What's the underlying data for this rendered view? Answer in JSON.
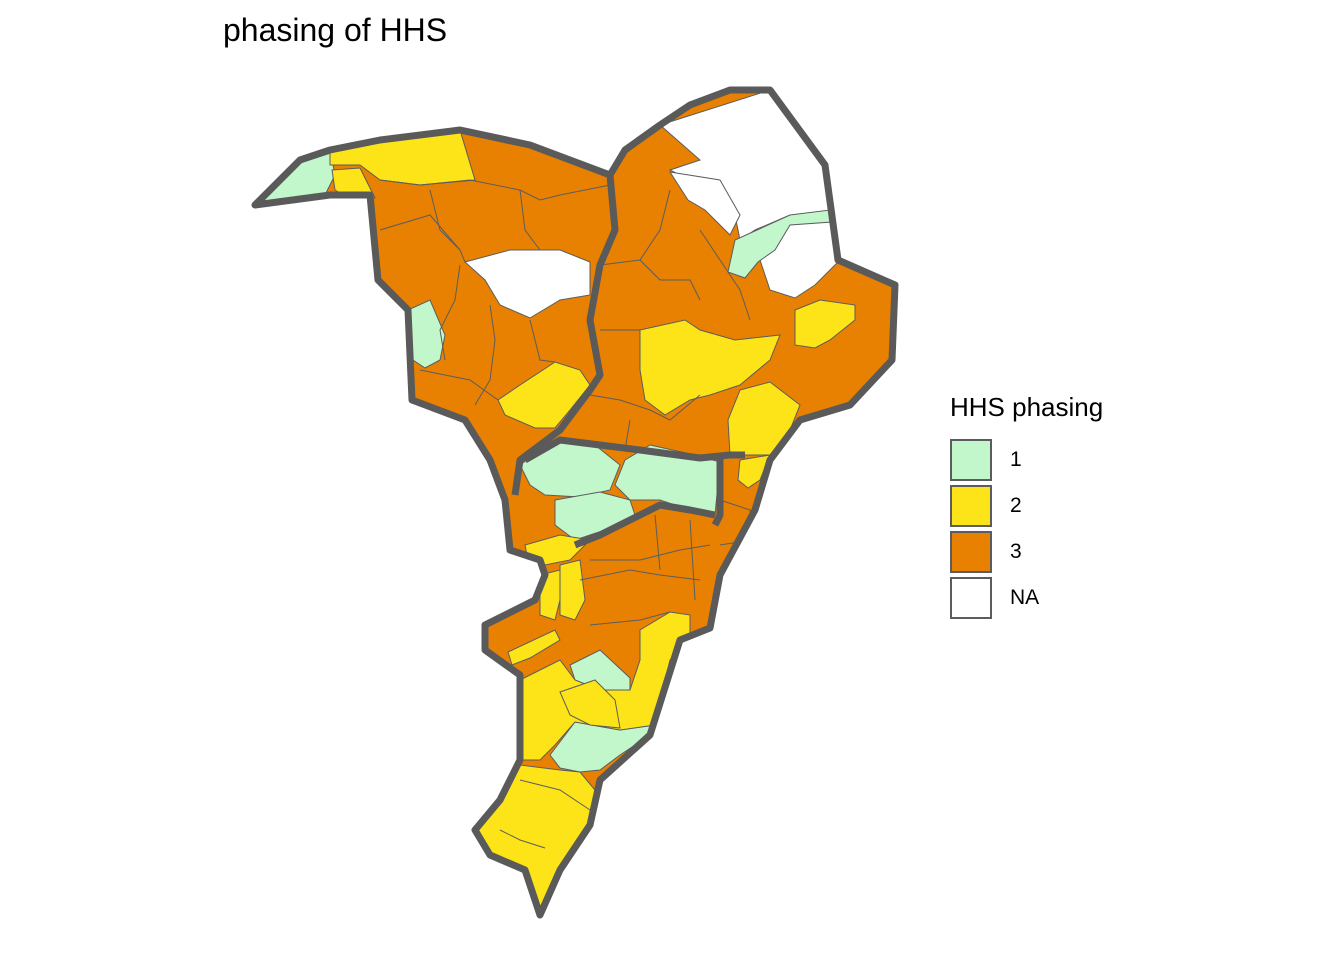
{
  "title": "phasing of HHS",
  "legend": {
    "title": "HHS phasing",
    "items": [
      {
        "label": "1",
        "color": "#c2f7cc"
      },
      {
        "label": "2",
        "color": "#fde418"
      },
      {
        "label": "3",
        "color": "#e88102"
      },
      {
        "label": "NA",
        "color": "#ffffff"
      }
    ]
  },
  "colors": {
    "district_border": "#5c5c5c",
    "region_border": "#5a5a5a",
    "background": "#ffffff"
  }
}
